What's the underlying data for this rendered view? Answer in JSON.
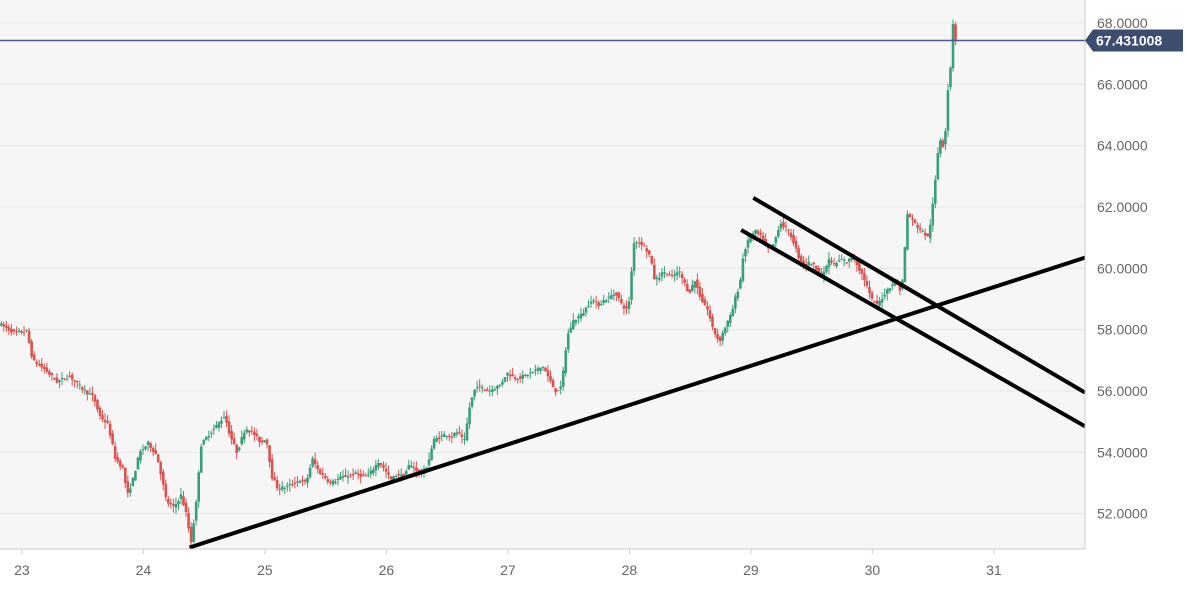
{
  "chart_data": {
    "type": "candlestick",
    "title": "",
    "xlabel": "",
    "ylabel": "",
    "x_tick_labels": [
      "23",
      "24",
      "25",
      "26",
      "27",
      "28",
      "29",
      "30",
      "31"
    ],
    "x_ticks": [
      23,
      24,
      25,
      26,
      27,
      28,
      29,
      30,
      31
    ],
    "xlim": [
      22.82,
      31.75
    ],
    "y_tick_labels": [
      "52.0000",
      "54.0000",
      "56.0000",
      "58.0000",
      "60.0000",
      "62.0000",
      "64.0000",
      "66.0000",
      "68.0000"
    ],
    "y_ticks": [
      52,
      54,
      56,
      58,
      60,
      62,
      64,
      66,
      68
    ],
    "ylim": [
      50.85,
      68.75
    ],
    "grid": "horizontal",
    "current_price": {
      "value": 67.431008,
      "label": "67.431008"
    },
    "price_path": [
      [
        22.82,
        58.2
      ],
      [
        22.95,
        57.9
      ],
      [
        23.05,
        57.95
      ],
      [
        23.1,
        57.0
      ],
      [
        23.2,
        56.7
      ],
      [
        23.3,
        56.3
      ],
      [
        23.4,
        56.5
      ],
      [
        23.5,
        56.1
      ],
      [
        23.6,
        55.8
      ],
      [
        23.65,
        55.2
      ],
      [
        23.72,
        54.9
      ],
      [
        23.78,
        53.8
      ],
      [
        23.84,
        53.5
      ],
      [
        23.88,
        52.6
      ],
      [
        23.93,
        53.2
      ],
      [
        23.98,
        54.0
      ],
      [
        24.05,
        54.3
      ],
      [
        24.12,
        53.9
      ],
      [
        24.15,
        53.4
      ],
      [
        24.2,
        52.4
      ],
      [
        24.26,
        52.2
      ],
      [
        24.32,
        52.6
      ],
      [
        24.37,
        51.9
      ],
      [
        24.4,
        51.0
      ],
      [
        24.45,
        52.5
      ],
      [
        24.48,
        54.2
      ],
      [
        24.55,
        54.6
      ],
      [
        24.62,
        54.9
      ],
      [
        24.68,
        55.2
      ],
      [
        24.72,
        54.6
      ],
      [
        24.78,
        54.0
      ],
      [
        24.85,
        54.8
      ],
      [
        24.92,
        54.6
      ],
      [
        24.98,
        54.3
      ],
      [
        25.02,
        54.5
      ],
      [
        25.07,
        53.2
      ],
      [
        25.12,
        52.8
      ],
      [
        25.2,
        52.9
      ],
      [
        25.3,
        53.1
      ],
      [
        25.35,
        53.0
      ],
      [
        25.4,
        53.8
      ],
      [
        25.45,
        53.4
      ],
      [
        25.55,
        53.0
      ],
      [
        25.65,
        53.2
      ],
      [
        25.75,
        53.3
      ],
      [
        25.85,
        53.2
      ],
      [
        25.95,
        53.7
      ],
      [
        26.0,
        53.4
      ],
      [
        26.05,
        53.1
      ],
      [
        26.1,
        53.3
      ],
      [
        26.15,
        53.2
      ],
      [
        26.2,
        53.6
      ],
      [
        26.3,
        53.3
      ],
      [
        26.35,
        53.6
      ],
      [
        26.4,
        54.4
      ],
      [
        26.5,
        54.6
      ],
      [
        26.55,
        54.5
      ],
      [
        26.6,
        54.7
      ],
      [
        26.65,
        54.3
      ],
      [
        26.7,
        55.6
      ],
      [
        26.75,
        56.2
      ],
      [
        26.85,
        56.0
      ],
      [
        26.95,
        56.2
      ],
      [
        27.0,
        56.6
      ],
      [
        27.08,
        56.4
      ],
      [
        27.15,
        56.5
      ],
      [
        27.2,
        56.6
      ],
      [
        27.3,
        56.8
      ],
      [
        27.35,
        56.4
      ],
      [
        27.4,
        56.0
      ],
      [
        27.45,
        56.1
      ],
      [
        27.5,
        57.8
      ],
      [
        27.55,
        58.3
      ],
      [
        27.62,
        58.5
      ],
      [
        27.7,
        59.0
      ],
      [
        27.75,
        58.8
      ],
      [
        27.82,
        59.0
      ],
      [
        27.9,
        59.2
      ],
      [
        27.95,
        58.8
      ],
      [
        28.0,
        58.6
      ],
      [
        28.05,
        60.9
      ],
      [
        28.12,
        60.8
      ],
      [
        28.18,
        60.4
      ],
      [
        28.22,
        59.6
      ],
      [
        28.3,
        59.9
      ],
      [
        28.35,
        59.7
      ],
      [
        28.42,
        59.9
      ],
      [
        28.5,
        59.2
      ],
      [
        28.55,
        59.6
      ],
      [
        28.6,
        59.0
      ],
      [
        28.65,
        58.7
      ],
      [
        28.7,
        58.0
      ],
      [
        28.75,
        57.6
      ],
      [
        28.8,
        58.1
      ],
      [
        28.85,
        58.5
      ],
      [
        28.88,
        59.0
      ],
      [
        28.92,
        59.5
      ],
      [
        28.95,
        60.5
      ],
      [
        29.0,
        61.0
      ],
      [
        29.05,
        61.2
      ],
      [
        29.1,
        61.0
      ],
      [
        29.15,
        60.6
      ],
      [
        29.2,
        60.8
      ],
      [
        29.25,
        61.5
      ],
      [
        29.3,
        61.3
      ],
      [
        29.35,
        61.0
      ],
      [
        29.4,
        60.4
      ],
      [
        29.45,
        60.1
      ],
      [
        29.5,
        60.2
      ],
      [
        29.55,
        60.0
      ],
      [
        29.6,
        59.7
      ],
      [
        29.65,
        60.3
      ],
      [
        29.7,
        60.1
      ],
      [
        29.75,
        60.3
      ],
      [
        29.8,
        60.2
      ],
      [
        29.85,
        60.4
      ],
      [
        29.9,
        60.0
      ],
      [
        29.95,
        59.6
      ],
      [
        30.0,
        59.0
      ],
      [
        30.05,
        58.8
      ],
      [
        30.1,
        59.1
      ],
      [
        30.15,
        59.4
      ],
      [
        30.2,
        59.6
      ],
      [
        30.25,
        59.2
      ],
      [
        30.3,
        61.8
      ],
      [
        30.35,
        61.5
      ],
      [
        30.42,
        61.2
      ],
      [
        30.47,
        61.0
      ],
      [
        30.5,
        61.8
      ],
      [
        30.52,
        62.5
      ],
      [
        30.55,
        63.8
      ],
      [
        30.57,
        64.2
      ],
      [
        30.59,
        64.0
      ],
      [
        30.61,
        64.4
      ],
      [
        30.63,
        65.8
      ],
      [
        30.65,
        66.2
      ],
      [
        30.67,
        68.4
      ],
      [
        30.68,
        67.43
      ]
    ],
    "trendlines": [
      {
        "name": "",
        "points": [
          [
            24.38,
            50.9
          ],
          [
            31.75,
            60.35
          ]
        ]
      },
      {
        "name": "",
        "points": [
          [
            29.02,
            62.3
          ],
          [
            31.75,
            55.95
          ]
        ]
      },
      {
        "name": "",
        "points": [
          [
            28.92,
            61.25
          ],
          [
            31.75,
            54.85
          ]
        ]
      }
    ],
    "colors": {
      "up": "#3a9e79",
      "down": "#d9534f",
      "trendline": "#000000",
      "current_price_line": "#4a5a85",
      "current_price_badge": "#3d4d70",
      "grid": "#e6e6e6",
      "plot_background": "#f6f6f7",
      "axis_text": "#666666"
    }
  }
}
